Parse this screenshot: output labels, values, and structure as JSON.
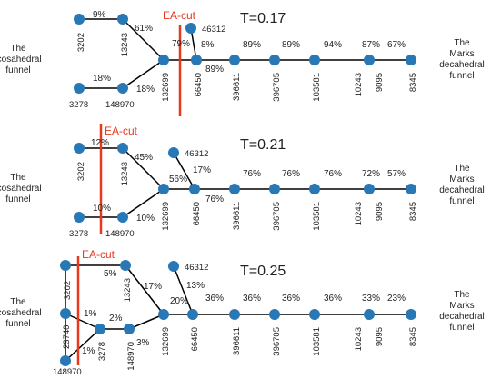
{
  "funnel_left": [
    "The",
    "icosahedral",
    "funnel"
  ],
  "funnel_right": [
    "The",
    "Marks",
    "decahedral",
    "funnel"
  ],
  "ea_cut": "EA-cut",
  "panels": [
    {
      "temperature": "T=0.17",
      "left_edge_pcts": {
        "top": "9%",
        "upper_diag": "61%",
        "lower_diag": "18%",
        "bottom": "18%",
        "to_132699": "79%",
        "branch": "8%",
        "to_66450": "89%"
      },
      "chain_pcts": [
        "89%",
        "89%",
        "94%",
        "87%",
        "67%"
      ],
      "labels": {
        "3202": "3202",
        "13243": "13243",
        "3278": "3278",
        "148970": "148970",
        "132699": "132699",
        "46312": "46312"
      }
    },
    {
      "temperature": "T=0.21",
      "left_edge_pcts": {
        "top": "12%",
        "upper_diag": "45%",
        "lower_diag": "10%",
        "bottom": "10%",
        "to_132699": "56%",
        "branch": "17%",
        "to_66450": "76%"
      },
      "chain_pcts": [
        "76%",
        "76%",
        "76%",
        "72%",
        "57%"
      ],
      "labels": {
        "3202": "3202",
        "13243": "13243",
        "3278": "3278",
        "148970": "148970",
        "132699": "132699",
        "46312": "46312"
      }
    },
    {
      "temperature": "T=0.25",
      "left_edge_pcts": {
        "top": "5%",
        "upper_diag": "17%",
        "to_132699": "20%",
        "branch": "13%",
        "left_upper": "1%",
        "left_mid": "2%",
        "left_lower": "1%",
        "to_132699_low": "3%"
      },
      "chain_pcts": [
        "36%",
        "36%",
        "36%",
        "36%",
        "33%",
        "23%"
      ],
      "labels": {
        "3202": "3202",
        "13243": "13243",
        "23740": "23740",
        "3278": "3278",
        "148970_a": "148970",
        "148970_b": "148970",
        "132699": "132699",
        "46312": "46312"
      }
    }
  ],
  "chain_labels": [
    "66450",
    "396611",
    "396705",
    "103581",
    "10243",
    "9095",
    "8345"
  ]
}
